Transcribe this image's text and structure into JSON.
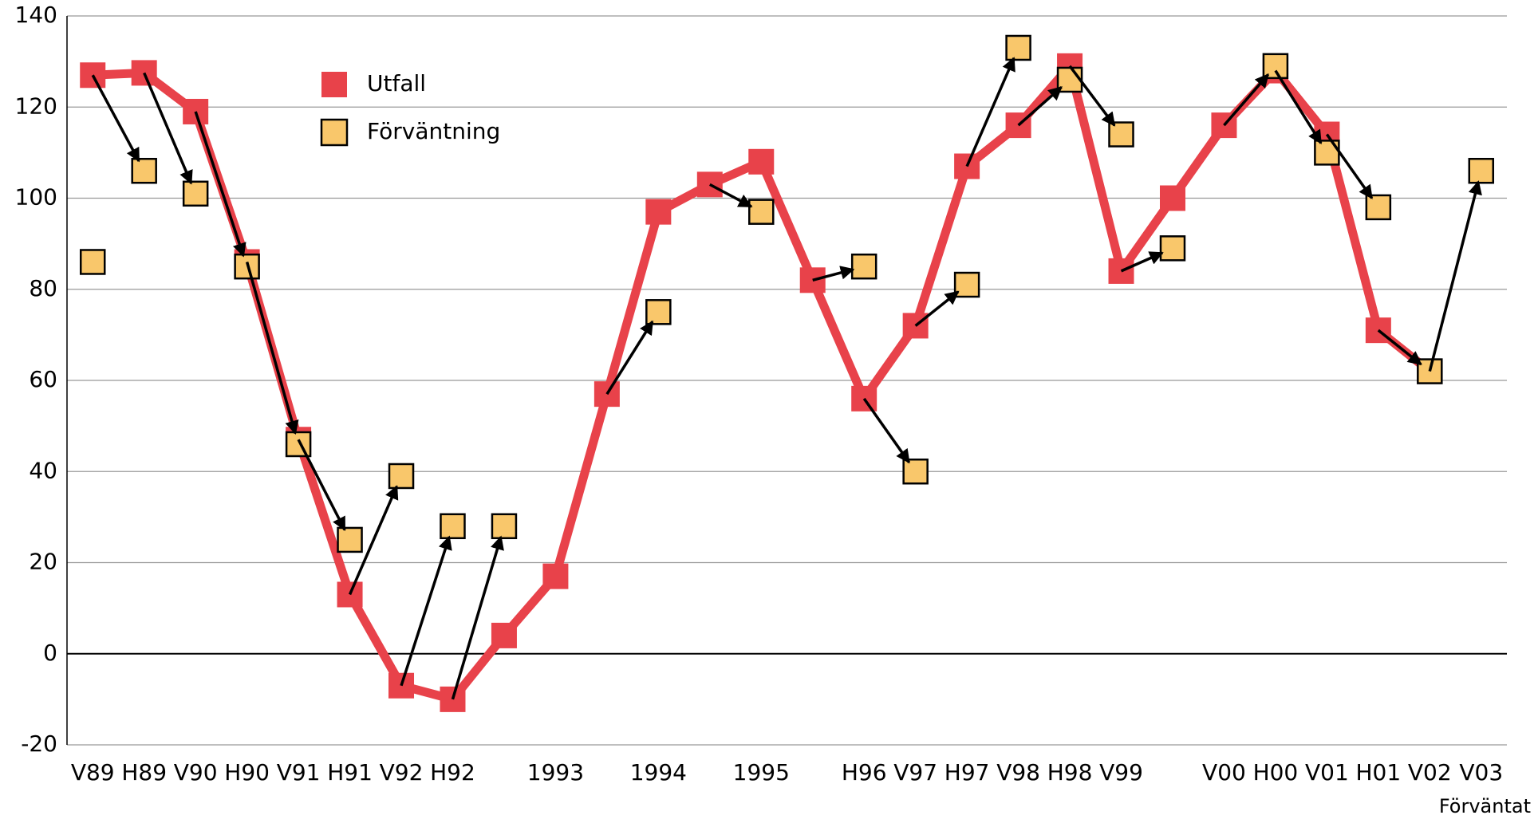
{
  "chart_data": {
    "type": "line",
    "categories": [
      "V89",
      "H89",
      "V90",
      "H90",
      "V91",
      "H91",
      "V92",
      "H92",
      null,
      "1993",
      null,
      "1994",
      null,
      "1995",
      null,
      "H96",
      "V97",
      "H97",
      "V98",
      "H98",
      "V99",
      null,
      "V00",
      "H00",
      "V01",
      "H01",
      "V02",
      "V03"
    ],
    "series": [
      {
        "name": "Utfall",
        "color": "#e8424a",
        "values": [
          127,
          127.5,
          119,
          86,
          47,
          13,
          -7,
          -10,
          4,
          17,
          57,
          97,
          103,
          108,
          82,
          56,
          72,
          107,
          116,
          129,
          84,
          100,
          116,
          128,
          114,
          71,
          62,
          null
        ]
      },
      {
        "name": "Förväntning",
        "color": "#f9c76b",
        "values": [
          86,
          106,
          101,
          85,
          46,
          25,
          39,
          28,
          28,
          null,
          null,
          75,
          null,
          97,
          null,
          85,
          40,
          81,
          133,
          126,
          114,
          89,
          null,
          129,
          110,
          98,
          62,
          106
        ]
      }
    ],
    "annotation": "Förväntat",
    "ylim": [
      -20,
      140
    ],
    "yticks": [
      -20,
      0,
      20,
      40,
      60,
      80,
      100,
      120,
      140
    ],
    "grid": true
  }
}
